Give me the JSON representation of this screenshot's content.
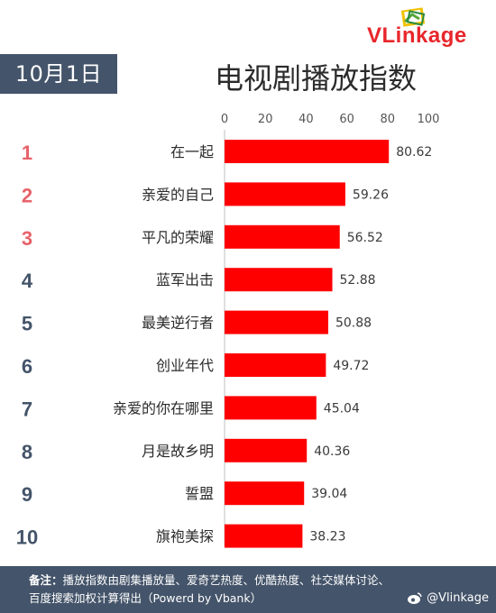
{
  "brand": {
    "logo_text": "VLinkage",
    "logo_v": "VL",
    "logo_rest": "inkage"
  },
  "header": {
    "date": "10月1日",
    "title": "电视剧播放指数"
  },
  "chart_data": {
    "type": "bar",
    "orientation": "horizontal",
    "title": "电视剧播放指数",
    "xlim": [
      0,
      100
    ],
    "x_ticks": [
      0,
      20,
      40,
      60,
      80,
      100
    ],
    "grid": false,
    "ranks": [
      "1",
      "2",
      "3",
      "4",
      "5",
      "6",
      "7",
      "8",
      "9",
      "10"
    ],
    "categories": [
      "在一起",
      "亲爱的自己",
      "平凡的荣耀",
      "蓝军出击",
      "最美逆行者",
      "创业年代",
      "亲爱的你在哪里",
      "月是故乡明",
      "誓盟",
      "旗袍美探"
    ],
    "values": [
      80.62,
      59.26,
      56.52,
      52.88,
      50.88,
      49.72,
      45.04,
      40.36,
      39.04,
      38.23
    ],
    "value_labels": [
      "80.62",
      "59.26",
      "56.52",
      "52.88",
      "50.88",
      "49.72",
      "45.04",
      "40.36",
      "39.04",
      "38.23"
    ]
  },
  "colors": {
    "bar": "#ff0000",
    "rank_top": "#e8626a",
    "rank_other": "#44546a",
    "footer_bg": "#44546a"
  },
  "footer": {
    "note_label": "备注：",
    "note_line1": "播放指数由剧集播放量、爱奇艺热度、优酷热度、社交媒体讨论、",
    "note_line2": "百度搜索加权计算得出（Powerd by Vbank）",
    "weibo_handle": "@Vlinkage",
    "weibo_icon": "weibo-icon"
  }
}
